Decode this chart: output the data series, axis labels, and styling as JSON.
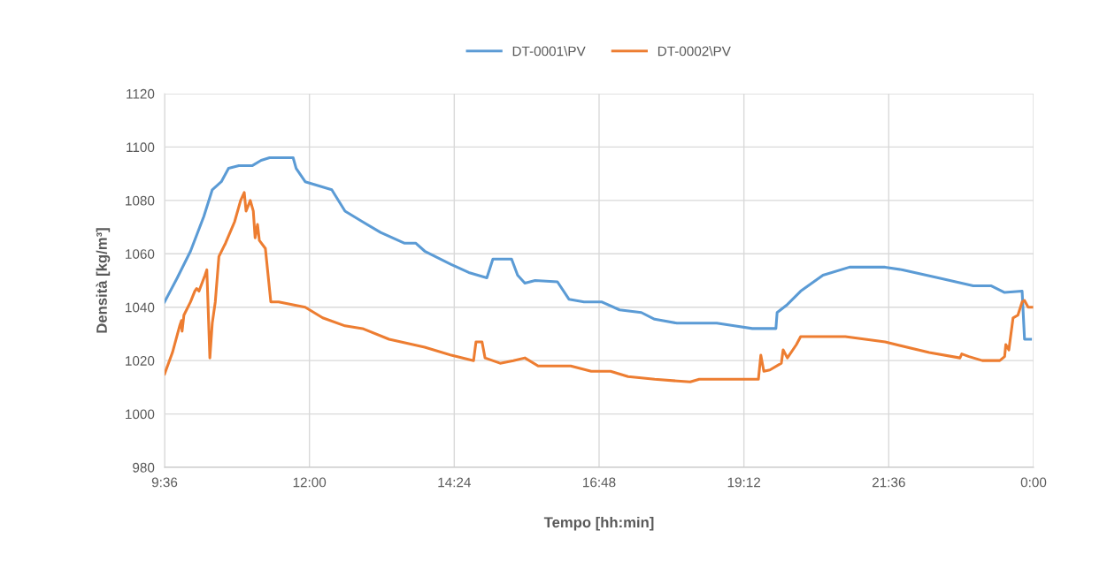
{
  "chart_data": {
    "type": "line",
    "xlabel": "Tempo [hh:min]",
    "ylabel": "Densità [kg/m³]",
    "xlim": [
      9.6,
      24
    ],
    "xticks": [
      {
        "value": 9.6,
        "label": "9:36"
      },
      {
        "value": 12,
        "label": "12:00"
      },
      {
        "value": 14.4,
        "label": "14:24"
      },
      {
        "value": 16.8,
        "label": "16:48"
      },
      {
        "value": 19.2,
        "label": "19:12"
      },
      {
        "value": 21.6,
        "label": "21:36"
      },
      {
        "value": 24,
        "label": "0:00"
      }
    ],
    "ylim": [
      980,
      1120
    ],
    "yticks": [
      980,
      1000,
      1020,
      1040,
      1060,
      1080,
      1100,
      1120
    ],
    "grid": true,
    "legend": "top",
    "marker": "none",
    "line_style": "solid",
    "series": [
      {
        "name": "DT-0001\\PV",
        "color": "#5b9bd5",
        "x": [
          9.6,
          9.81,
          10.03,
          10.25,
          10.39,
          10.54,
          10.66,
          10.83,
          11.05,
          11.2,
          11.34,
          11.73,
          11.78,
          11.93,
          12.37,
          12.59,
          12.88,
          13.18,
          13.57,
          13.76,
          13.91,
          14.35,
          14.64,
          14.94,
          15.04,
          15.35,
          15.45,
          15.57,
          15.74,
          16.11,
          16.3,
          16.55,
          16.84,
          17.14,
          17.5,
          17.72,
          18.09,
          18.75,
          19.04,
          19.34,
          19.73,
          19.75,
          19.92,
          20.14,
          20.51,
          20.95,
          21.54,
          21.83,
          22.42,
          23.0,
          23.3,
          23.52,
          23.81,
          23.85,
          23.95
        ],
        "values": [
          1042,
          1051,
          1061,
          1074,
          1084,
          1087,
          1092,
          1093,
          1093,
          1095,
          1096,
          1096,
          1092,
          1087,
          1084,
          1076,
          1072,
          1068,
          1064,
          1064,
          1061,
          1056,
          1053,
          1051,
          1058,
          1058,
          1052,
          1049,
          1050,
          1049.5,
          1043,
          1042,
          1042,
          1039,
          1038,
          1035.5,
          1034,
          1034,
          1033,
          1032,
          1032,
          1038,
          1041,
          1046,
          1052,
          1055,
          1055,
          1054,
          1051,
          1048,
          1048,
          1045.5,
          1046,
          1028,
          1028
        ]
      },
      {
        "name": "DT-0002\\PV",
        "color": "#ed7d31",
        "x": [
          9.6,
          9.73,
          9.85,
          9.88,
          9.89,
          9.92,
          10.03,
          10.1,
          10.13,
          10.17,
          10.27,
          10.3,
          10.35,
          10.39,
          10.44,
          10.5,
          10.61,
          10.76,
          10.86,
          10.92,
          10.95,
          11.02,
          11.07,
          11.1,
          11.14,
          11.17,
          11.27,
          11.36,
          11.49,
          11.93,
          12.22,
          12.59,
          12.88,
          13.32,
          13.91,
          14.35,
          14.72,
          14.76,
          14.86,
          14.91,
          15.16,
          15.38,
          15.57,
          15.79,
          16.33,
          16.67,
          16.99,
          17.28,
          17.72,
          18.31,
          18.46,
          19.44,
          19.48,
          19.53,
          19.63,
          19.82,
          19.85,
          19.92,
          20.07,
          20.14,
          20.36,
          20.88,
          21.54,
          22.27,
          22.78,
          22.81,
          22.93,
          23.15,
          23.44,
          23.52,
          23.54,
          23.59,
          23.66,
          23.74,
          23.81,
          23.85,
          23.91,
          23.97
        ],
        "values": [
          1015,
          1023,
          1033,
          1035,
          1031,
          1037,
          1042,
          1046,
          1047,
          1046,
          1052,
          1054,
          1021,
          1034,
          1042,
          1059,
          1064,
          1072,
          1080,
          1083,
          1076,
          1080,
          1076,
          1066,
          1071,
          1065,
          1062,
          1042,
          1042,
          1040,
          1036,
          1033,
          1032,
          1028,
          1025,
          1022,
          1020,
          1027,
          1027,
          1021,
          1019,
          1020,
          1021,
          1018,
          1018,
          1016,
          1016,
          1014,
          1013,
          1012,
          1013,
          1013,
          1022,
          1016,
          1016.5,
          1019,
          1024,
          1021,
          1026,
          1029,
          1029,
          1029,
          1027,
          1023,
          1021,
          1022.5,
          1021.5,
          1020,
          1020,
          1021.5,
          1026,
          1024,
          1036,
          1037,
          1042,
          1042.5,
          1040,
          1040
        ]
      }
    ]
  }
}
